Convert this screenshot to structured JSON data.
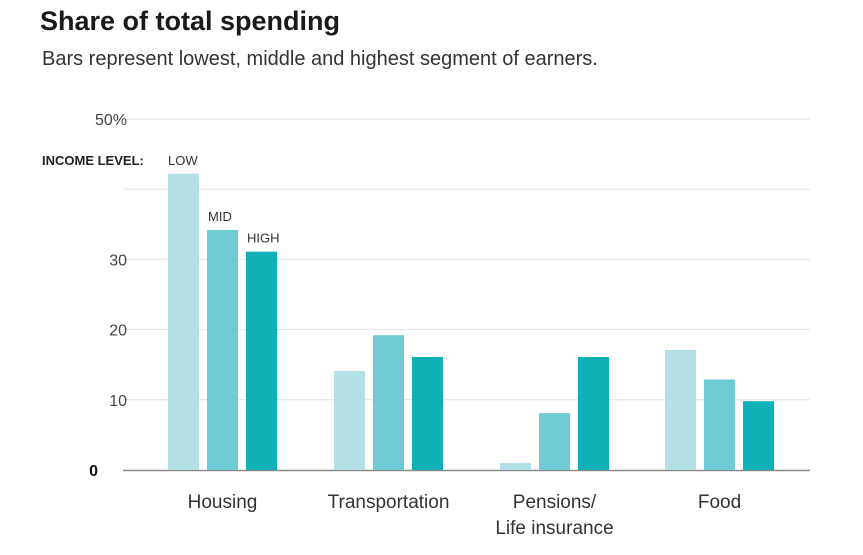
{
  "chart_data": {
    "type": "bar",
    "title": "Share of total spending",
    "subtitle": "Bars represent lowest, middle and highest segment of earners.",
    "legend_title": "INCOME LEVEL:",
    "categories": [
      "Housing",
      "Transportation",
      "Pensions/\nLife insurance",
      "Food"
    ],
    "series": [
      {
        "name": "LOW",
        "color": "#b2e0e4",
        "values": [
          42.2,
          14.1,
          1.0,
          17.1
        ]
      },
      {
        "name": "MID",
        "color": "#6ecbd3",
        "values": [
          34.2,
          19.2,
          8.1,
          12.9
        ]
      },
      {
        "name": "HIGH",
        "color": "#0fb1b7",
        "values": [
          31.1,
          16.1,
          16.1,
          9.8
        ]
      }
    ],
    "y_ticks": [
      0,
      10,
      20,
      30,
      50
    ],
    "y_tick_labels": [
      "0",
      "10",
      "20",
      "30",
      "50%"
    ],
    "gridlines": [
      10,
      20,
      30,
      40,
      50
    ],
    "ylim": [
      0,
      50
    ],
    "xlabel": "",
    "ylabel": ""
  }
}
